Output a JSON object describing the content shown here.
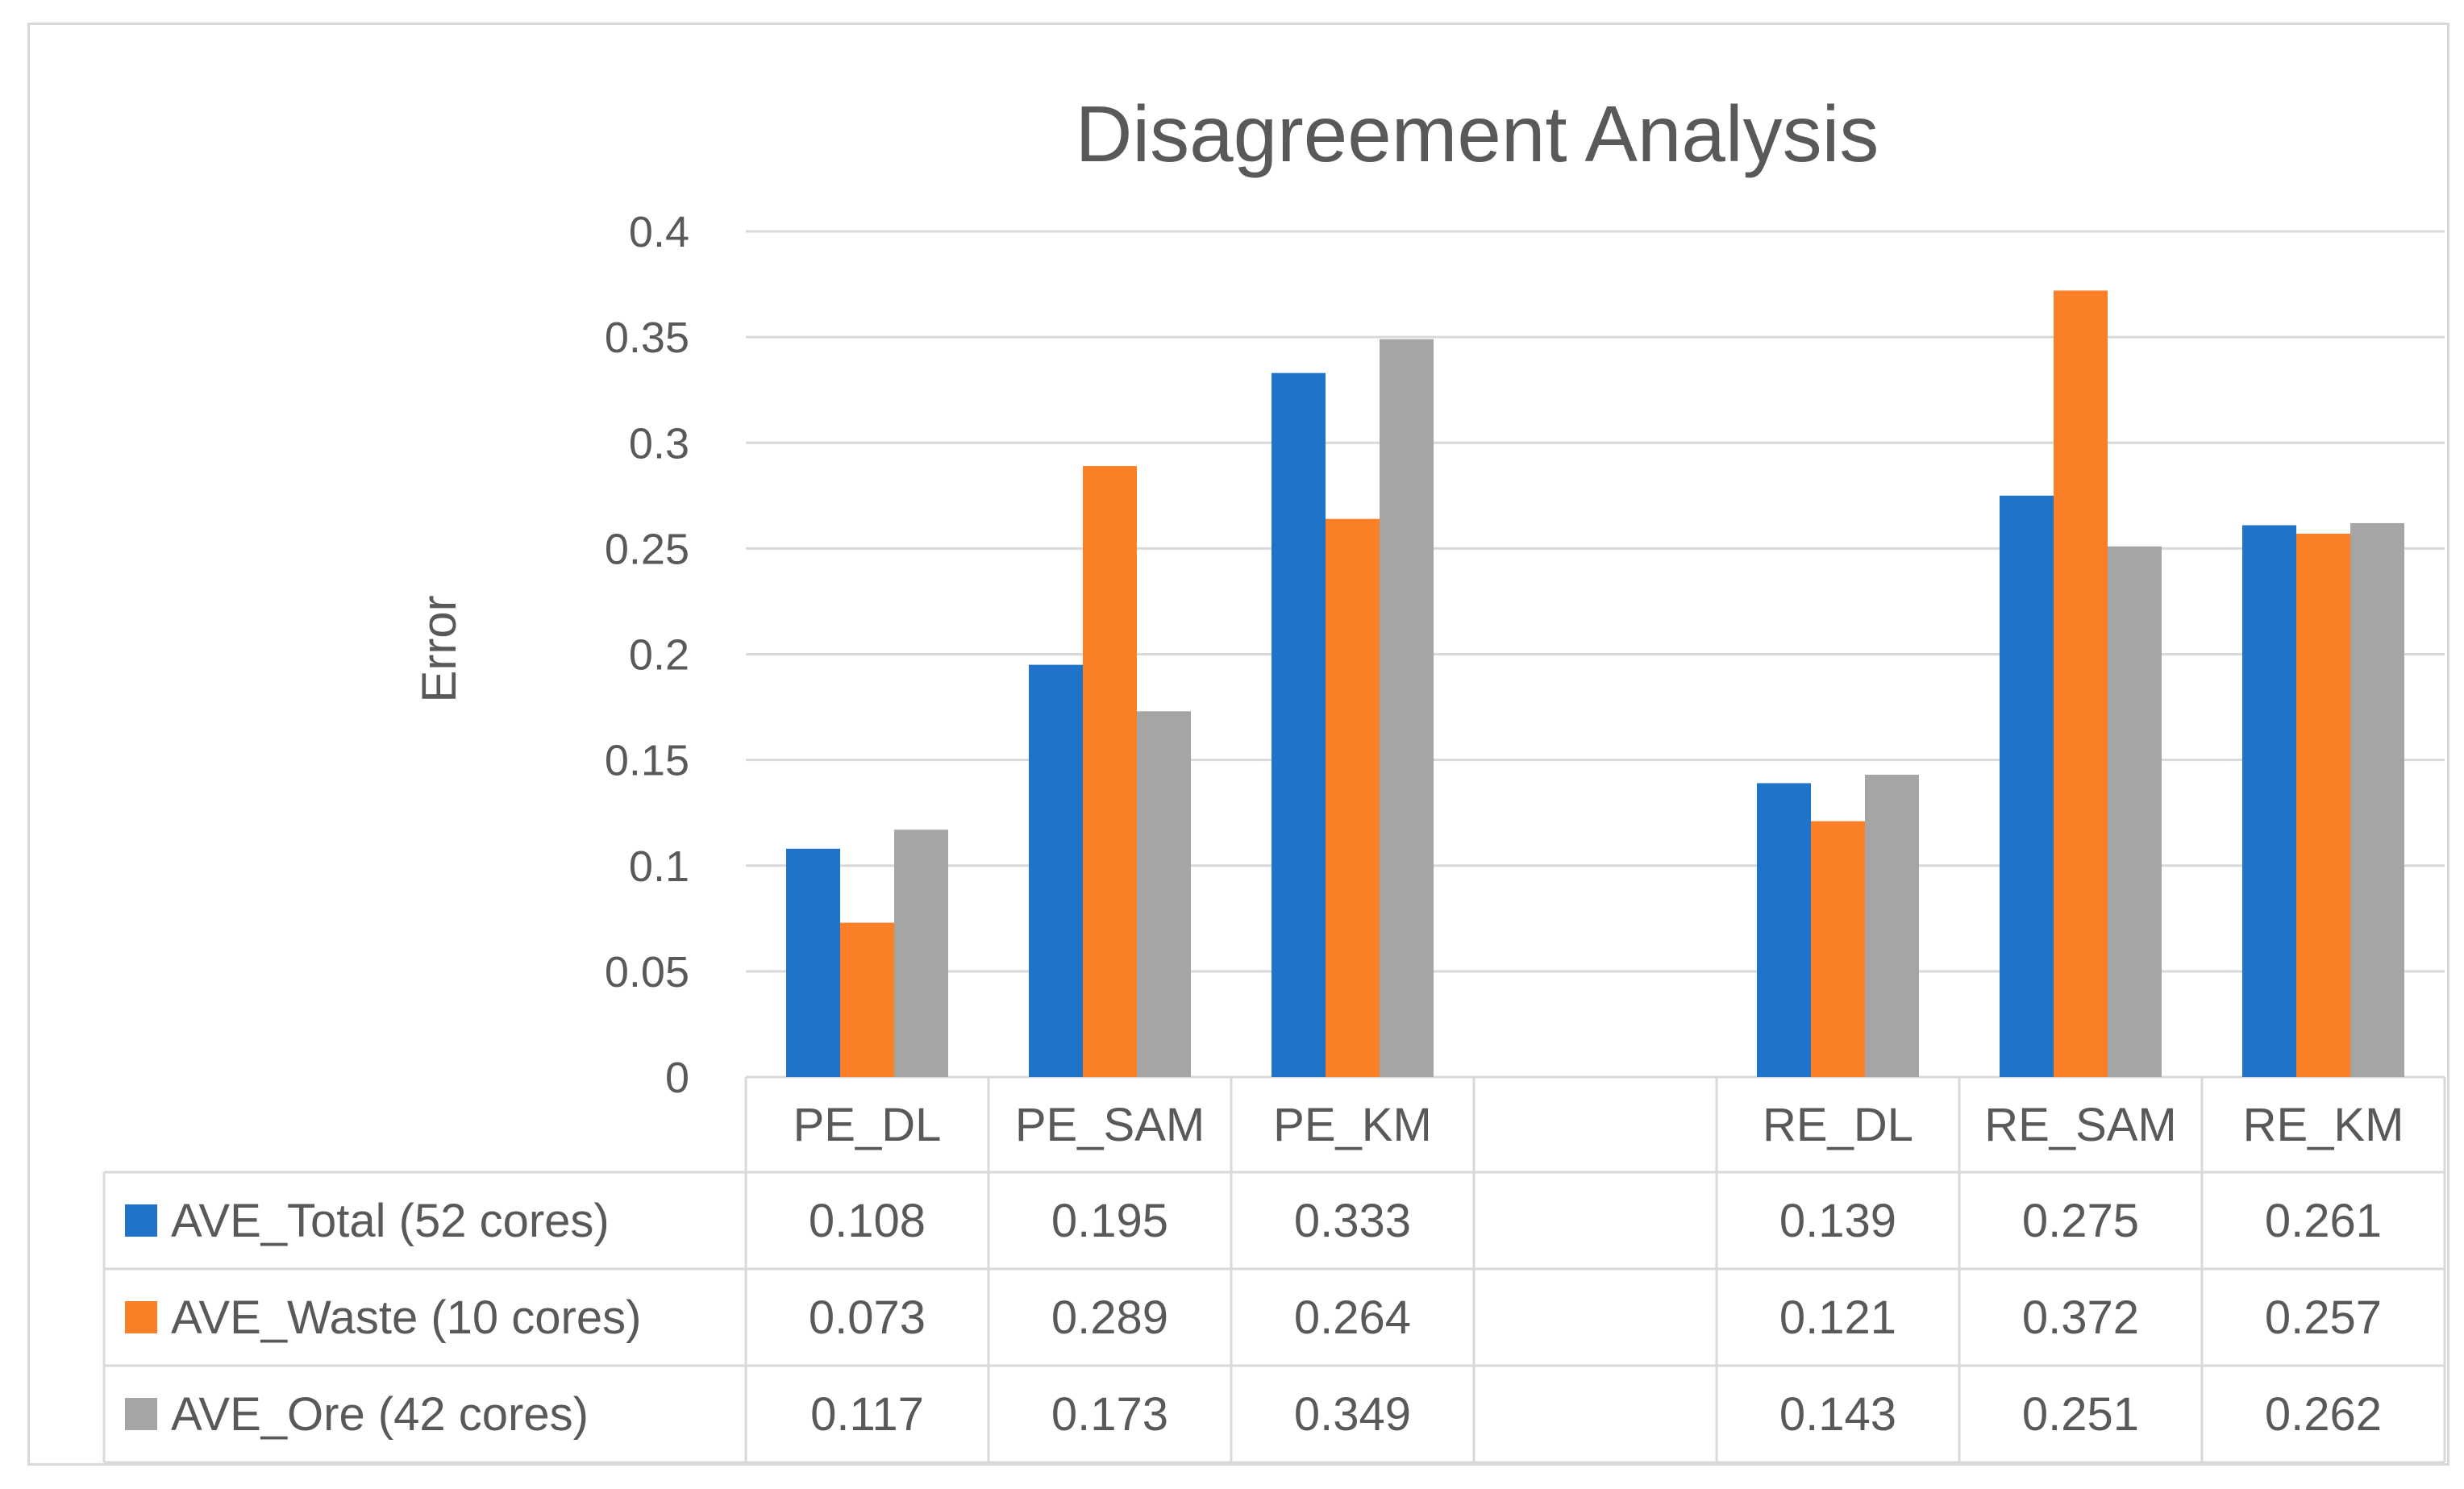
{
  "chart_data": {
    "type": "bar",
    "title": "Disagreement Analysis",
    "xlabel": "",
    "ylabel": "Error",
    "ylim": [
      0,
      0.4
    ],
    "yticks": [
      "0",
      "0.05",
      "0.1",
      "0.15",
      "0.2",
      "0.25",
      "0.3",
      "0.35",
      "0.4"
    ],
    "grid": true,
    "legend": "data-table",
    "categories": [
      "PE_DL",
      "PE_SAM",
      "PE_KM",
      "",
      "RE_DL",
      "RE_SAM",
      "RE_KM"
    ],
    "series": [
      {
        "name": "AVE_Total (52 cores)",
        "color": "#1f73c9",
        "values": [
          0.108,
          0.195,
          0.333,
          null,
          0.139,
          0.275,
          0.261
        ],
        "labels": [
          "0.108",
          "0.195",
          "0.333",
          "",
          "0.139",
          "0.275",
          "0.261"
        ]
      },
      {
        "name": "AVE_Waste (10 cores)",
        "color": "#fb7f26",
        "values": [
          0.073,
          0.289,
          0.264,
          null,
          0.121,
          0.372,
          0.257
        ],
        "labels": [
          "0.073",
          "0.289",
          "0.264",
          "",
          "0.121",
          "0.372",
          "0.257"
        ]
      },
      {
        "name": "AVE_Ore (42 cores)",
        "color": "#a5a5a5",
        "values": [
          0.117,
          0.173,
          0.349,
          null,
          0.143,
          0.251,
          0.262
        ],
        "labels": [
          "0.117",
          "0.173",
          "0.349",
          "",
          "0.143",
          "0.251",
          "0.262"
        ]
      }
    ]
  }
}
